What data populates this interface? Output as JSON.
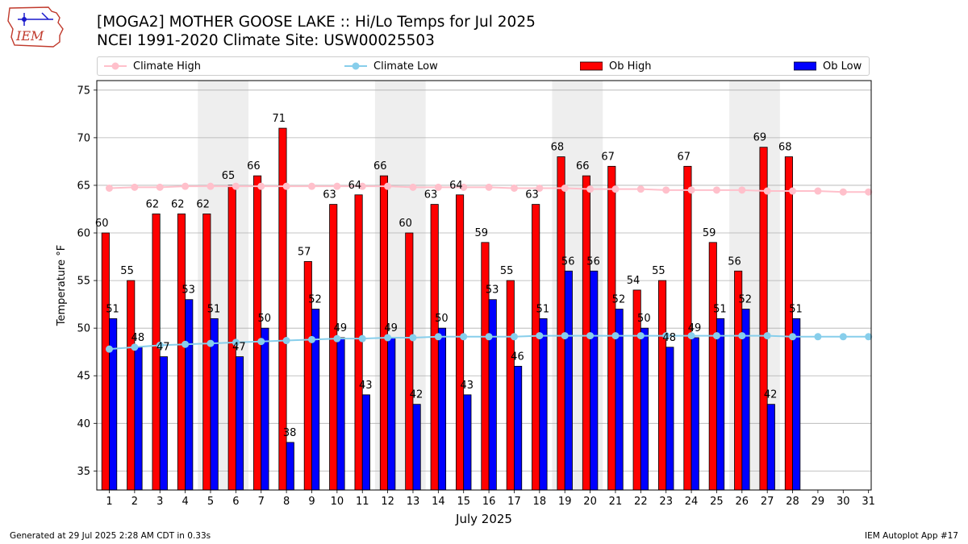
{
  "header": {
    "title_line1": "[MOGA2] MOTHER GOOSE LAKE :: Hi/Lo Temps for Jul 2025",
    "title_line2": "NCEI 1991-2020 Climate Site: USW00025503"
  },
  "logo": {
    "text": "IEM"
  },
  "legend": {
    "climate_high": "Climate High",
    "climate_low": "Climate Low",
    "ob_high": "Ob High",
    "ob_low": "Ob Low"
  },
  "footer": {
    "generated": "Generated at 29 Jul 2025 2:28 AM CDT in 0.33s",
    "app": "IEM Autoplot App #17"
  },
  "colors": {
    "ob_high": "#ff0000",
    "ob_low": "#0000ff",
    "climate_high": "#ffc0cb",
    "climate_low": "#87ceeb",
    "weekend_shade": "#eeeeee",
    "grid": "#b0b0b0"
  },
  "chart_data": {
    "type": "bar",
    "xlabel": "July 2025",
    "ylabel": "Temperature °F",
    "ylim": [
      33,
      76
    ],
    "yticks": [
      35,
      40,
      45,
      50,
      55,
      60,
      65,
      70,
      75
    ],
    "grid": "horizontal",
    "legend_position": "top",
    "categories": [
      "1",
      "2",
      "3",
      "4",
      "5",
      "6",
      "7",
      "8",
      "9",
      "10",
      "11",
      "12",
      "13",
      "14",
      "15",
      "16",
      "17",
      "18",
      "19",
      "20",
      "21",
      "22",
      "23",
      "24",
      "25",
      "26",
      "27",
      "28",
      "29",
      "30",
      "31"
    ],
    "shaded_days": [
      [
        "5",
        "6"
      ],
      [
        "12",
        "13"
      ],
      [
        "19",
        "20"
      ],
      [
        "26",
        "27"
      ]
    ],
    "series": [
      {
        "name": "Ob High",
        "kind": "bar",
        "values": [
          60,
          55,
          62,
          62,
          62,
          65,
          66,
          71,
          57,
          63,
          64,
          66,
          60,
          63,
          64,
          59,
          55,
          63,
          68,
          66,
          67,
          54,
          55,
          67,
          59,
          56,
          69,
          68,
          null,
          null,
          null
        ]
      },
      {
        "name": "Ob Low",
        "kind": "bar",
        "values": [
          51,
          48,
          47,
          53,
          51,
          47,
          50,
          38,
          52,
          49,
          43,
          49,
          42,
          50,
          43,
          53,
          46,
          51,
          56,
          56,
          52,
          50,
          48,
          49,
          51,
          52,
          42,
          51,
          null,
          null,
          null
        ]
      },
      {
        "name": "Climate High",
        "kind": "line",
        "values": [
          64.7,
          64.8,
          64.8,
          64.9,
          64.9,
          64.9,
          64.9,
          64.9,
          64.9,
          64.9,
          64.9,
          64.9,
          64.8,
          64.8,
          64.8,
          64.8,
          64.7,
          64.7,
          64.7,
          64.6,
          64.6,
          64.6,
          64.5,
          64.5,
          64.5,
          64.5,
          64.4,
          64.4,
          64.4,
          64.3,
          64.3
        ]
      },
      {
        "name": "Climate Low",
        "kind": "line",
        "values": [
          47.8,
          48.0,
          48.2,
          48.3,
          48.4,
          48.5,
          48.6,
          48.7,
          48.8,
          48.9,
          48.9,
          49.0,
          49.0,
          49.1,
          49.1,
          49.1,
          49.1,
          49.2,
          49.2,
          49.2,
          49.2,
          49.2,
          49.2,
          49.2,
          49.2,
          49.2,
          49.2,
          49.1,
          49.1,
          49.1,
          49.1
        ]
      }
    ]
  }
}
